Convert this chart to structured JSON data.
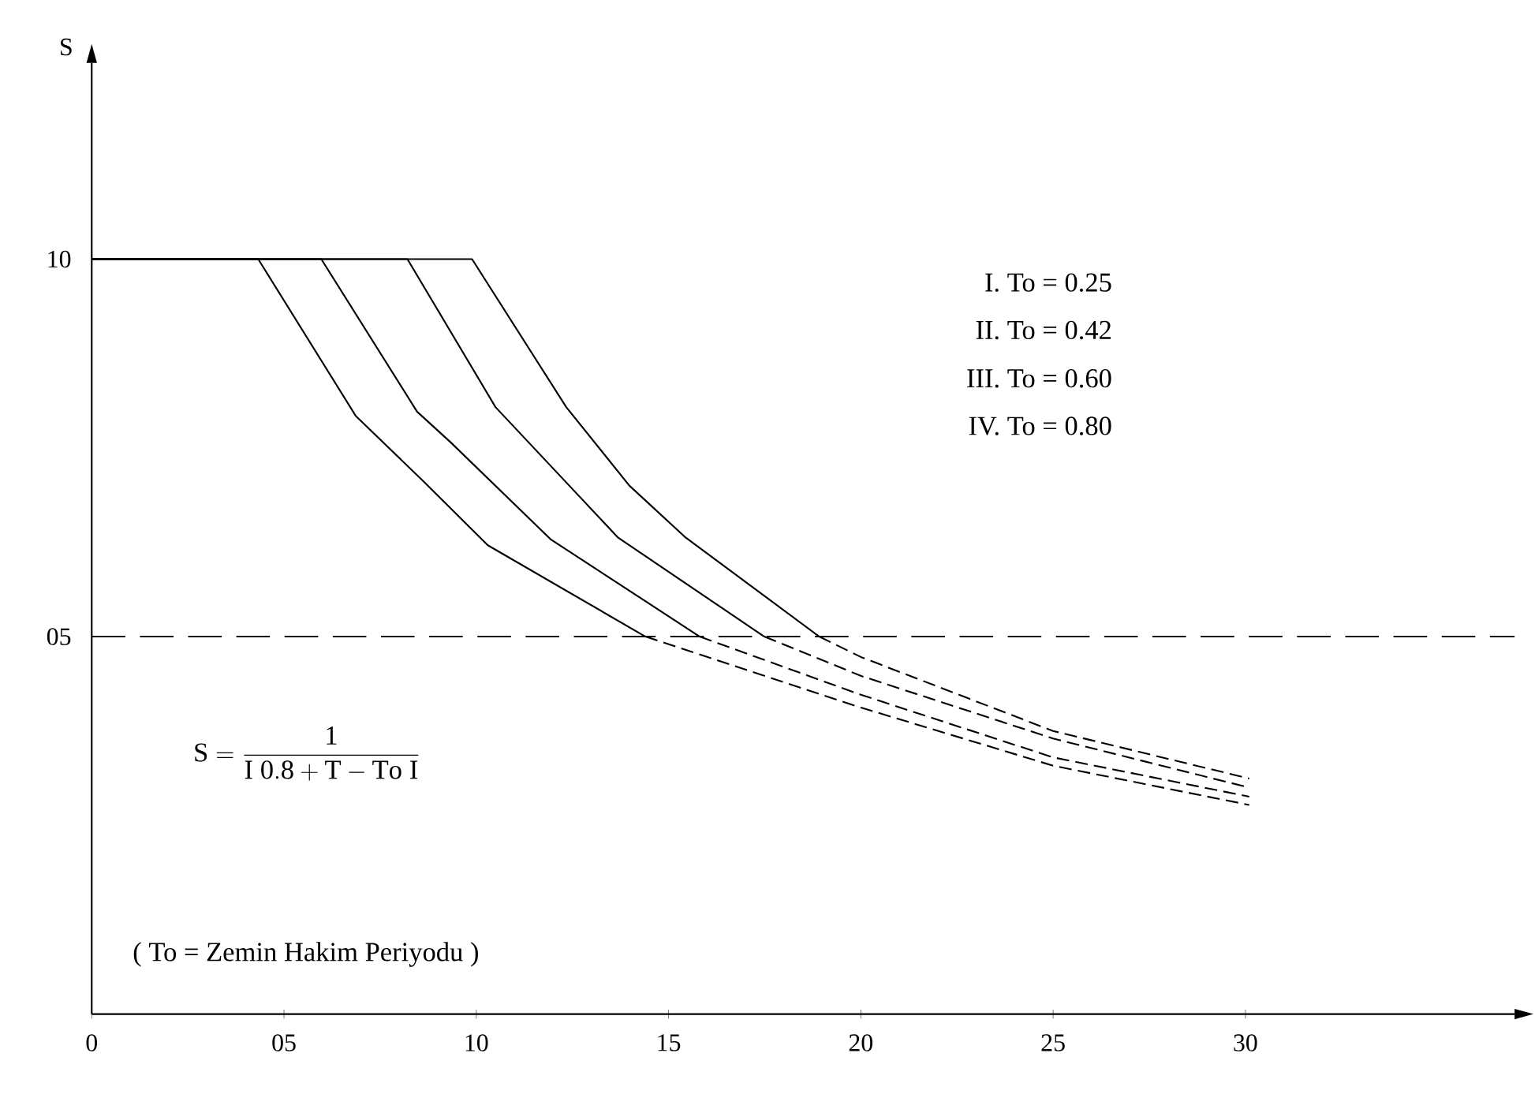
{
  "chart_data": {
    "type": "line",
    "ylabel": "S",
    "xlim": [
      0,
      37
    ],
    "ylim": [
      0,
      12.6
    ],
    "xticks": [
      0,
      {
        "value": 5,
        "label": "05"
      },
      10,
      15,
      20,
      25,
      30
    ],
    "yticks": [
      {
        "value": 5,
        "label": "05"
      },
      10
    ],
    "grid": false,
    "ref_lines": [
      {
        "axis": "y",
        "value": 5,
        "color": "#000000",
        "line_style": "dashed"
      }
    ],
    "series": [
      {
        "color": "#000000",
        "line_style": "solid",
        "x": [
          0,
          4.33,
          6.87,
          8.58,
          10.3,
          14.4
        ],
        "values": [
          10,
          10,
          7.92,
          7.08,
          6.21,
          5.0
        ]
      },
      {
        "color": "#000000",
        "line_style": "solid",
        "x": [
          0,
          5.97,
          8.46,
          9.32,
          11.93,
          15.81
        ],
        "values": [
          10,
          10,
          7.98,
          7.58,
          6.29,
          5.0
        ]
      },
      {
        "color": "#000000",
        "line_style": "solid",
        "x": [
          0,
          8.21,
          10.5,
          13.69,
          17.49
        ],
        "values": [
          10,
          10,
          8.04,
          6.31,
          5.0
        ]
      },
      {
        "color": "#000000",
        "line_style": "solid",
        "x": [
          0,
          9.89,
          12.34,
          13.98,
          15.45,
          18.92
        ],
        "values": [
          10,
          10,
          8.04,
          7.0,
          6.31,
          5.0
        ]
      },
      {
        "color": "#000000",
        "line_style": "dashed",
        "x": [
          14.4,
          20,
          25,
          30.1
        ],
        "values": [
          5.0,
          4.06,
          3.29,
          2.77
        ]
      },
      {
        "color": "#000000",
        "line_style": "dashed",
        "x": [
          15.81,
          20,
          25,
          30.1
        ],
        "values": [
          5.0,
          4.23,
          3.4,
          2.88
        ]
      },
      {
        "color": "#000000",
        "line_style": "dashed",
        "x": [
          17.49,
          20,
          25,
          30.1
        ],
        "values": [
          5.0,
          4.48,
          3.65,
          3.0
        ]
      },
      {
        "color": "#000000",
        "line_style": "dashed",
        "x": [
          18.92,
          20,
          25,
          30.1
        ],
        "values": [
          5.0,
          4.73,
          3.75,
          3.12
        ]
      }
    ],
    "annotations": [
      "I.  To = 0.25",
      "II.  To = 0.42",
      "III.  To = 0.60",
      "IV.  To = 0.80",
      "\\mathrm{S = \\frac{1}{I\\;0.8+T-To\\;I}}",
      "( To = Zemin Hakim Periyodu )"
    ]
  }
}
